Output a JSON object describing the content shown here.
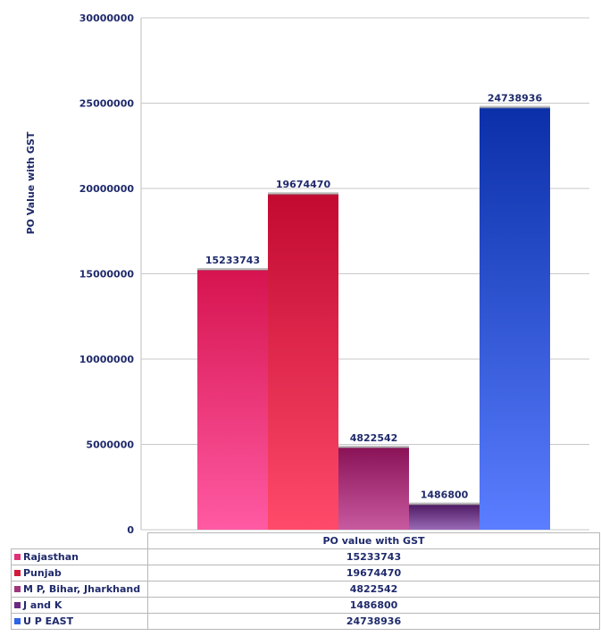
{
  "chart_data": {
    "type": "bar",
    "title": "",
    "xlabel": "",
    "ylabel": "PO Value with GST",
    "ylim": [
      0,
      30000000
    ],
    "yticks": [
      "0",
      "5000000",
      "10000000",
      "15000000",
      "20000000",
      "25000000",
      "30000000"
    ],
    "category_label": "PO value with GST",
    "grid": true,
    "legend": "data table below chart",
    "series": [
      {
        "name": "Rajasthan",
        "value": 15233743,
        "label": "15233743",
        "color_top": "#d6144f",
        "color_bottom": "#ff5aa3"
      },
      {
        "name": "Punjab",
        "value": 19674470,
        "label": "19674470",
        "color_top": "#c20a31",
        "color_bottom": "#ff4a6a"
      },
      {
        "name": "M P, Bihar, Jharkhand",
        "value": 4822542,
        "label": "4822542",
        "color_top": "#8a1257",
        "color_bottom": "#c85aa0"
      },
      {
        "name": "J and K",
        "value": 1486800,
        "label": "1486800",
        "color_top": "#4e1a63",
        "color_bottom": "#9a6ab6"
      },
      {
        "name": "U P EAST",
        "value": 24738936,
        "label": "24738936",
        "color_top": "#0a2fa8",
        "color_bottom": "#5a7eff"
      }
    ],
    "legend_colors": [
      "#e0307a",
      "#d31a3c",
      "#a0357e",
      "#6a2a83",
      "#2f63e8"
    ]
  }
}
